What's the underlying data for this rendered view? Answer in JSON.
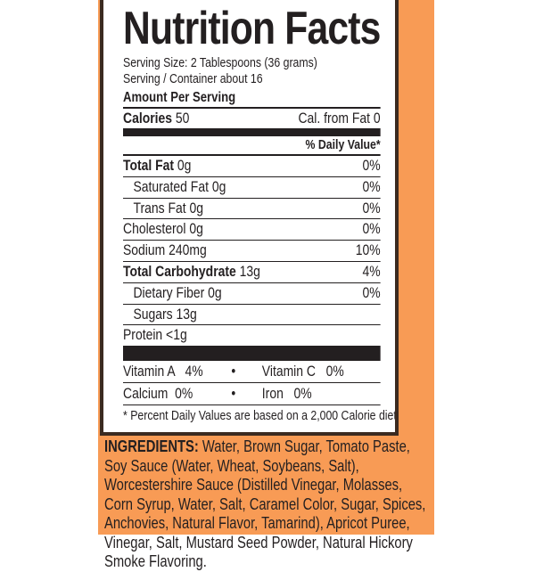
{
  "colors": {
    "background_orange": "#f89b55",
    "border_brown": "#3b2a20",
    "text": "#231f20"
  },
  "label": {
    "title": "Nutrition Facts",
    "serving_size": "Serving Size: 2 Tablespoons (36 grams)",
    "servings_per_container": "Serving / Container about 16",
    "amount_per_serving": "Amount Per Serving",
    "calories_label": "Calories",
    "calories_value": " 50",
    "cal_from_fat": "Cal. from Fat 0",
    "daily_value_header": "% Daily Value*",
    "nutrients": [
      {
        "name": "Total Fat",
        "amount": " 0g",
        "dv": "0%",
        "bold": true
      },
      {
        "name": "Saturated Fat",
        "amount": " 0g",
        "dv": "0%",
        "indent": true
      },
      {
        "name": "Trans Fat",
        "amount": " 0g",
        "dv": "0%",
        "indent": true
      },
      {
        "name": "Cholesterol",
        "amount": " 0g",
        "dv": "0%"
      },
      {
        "name": "Sodium",
        "amount": " 240mg",
        "dv": "10%"
      },
      {
        "name": "Total Carbohydrate",
        "amount": " 13g",
        "dv": "4%",
        "bold": true
      },
      {
        "name": "Dietary Fiber",
        "amount": " 0g",
        "dv": "0%",
        "indent": true
      },
      {
        "name": "Sugars",
        "amount": " 13g",
        "dv": "",
        "indent": true
      },
      {
        "name": "Protein",
        "amount": " <1g",
        "dv": ""
      }
    ],
    "vitamins": [
      {
        "left": "Vitamin A   4%",
        "separator": "•",
        "right": "Vitamin C   0%"
      },
      {
        "left": "Calcium  0%",
        "separator": "•",
        "right": "Iron   0%"
      }
    ],
    "footnote": "* Percent Daily Values are based on a 2,000 Calorie diet."
  },
  "ingredients": {
    "heading": "INGREDIENTS:",
    "text": " Water, Brown Sugar, Tomato Paste, Soy Sauce (Water, Wheat, Soybeans, Salt), Worcestershire Sauce (Distilled Vinegar, Molasses, Corn Syrup, Water, Salt, Caramel Color, Sugar, Spices, Anchovies, Natural Flavor, Tamarind), Apricot Puree, Vinegar, Salt, Mustard Seed Powder, Natural Hickory Smoke Flavoring."
  }
}
